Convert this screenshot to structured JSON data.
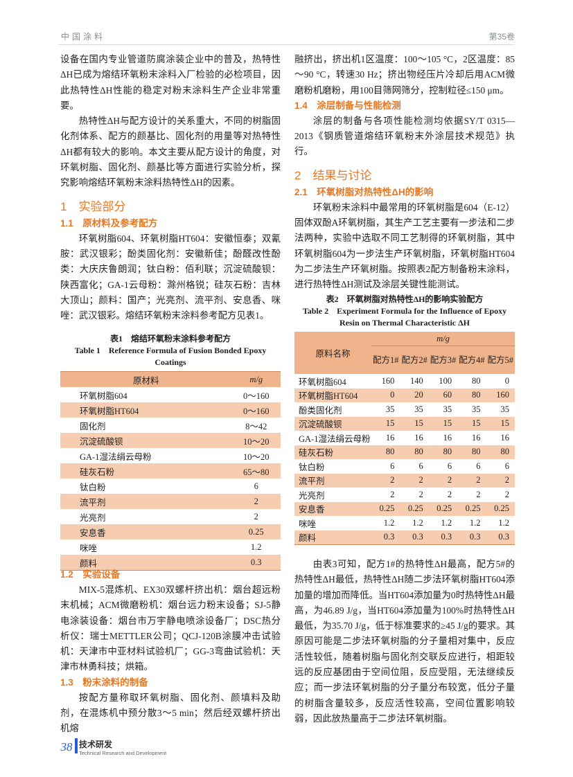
{
  "header": {
    "journal": "中国涂料",
    "volume": "第35卷"
  },
  "left": {
    "p1": "设备在国内专业管道防腐涂装企业中的普及，热特性ΔH已成为熔结环氧粉末涂料入厂检验的必检项目，因此热特性ΔH性能的稳定对粉末涂料生产企业非常重要。",
    "p2": "热特性ΔH与配方设计的关系重大，不同的树脂固化剂体系、配方的颜基比、固化剂的用量等对热特性ΔH都有较大的影响。本文主要从配方设计的角度，对环氧树脂、固化剂、颜基比等方面进行实验分析，探究影响熔结环氧粉末涂料热特性ΔH的因素。",
    "s1": "1　实验部分",
    "s11": "1.1　原材料及参考配方",
    "p3": "环氧树脂604、环氧树脂HT604：安徽恒泰；双氰胺：武汉银彩；酚类固化剂：安徽新佳；酚醛改性酚类：大庆庆鲁朗润；钛白粉：佰利联；沉淀硫酸钡：陕西富化；GA-1云母粉：滁州格锐；硅灰石粉：吉林大顶山；颜料：国产；光亮剂、流平剂、安息香、咪唑：武汉银彩。熔结环氧粉末涂料参考配方见表1。",
    "s12": "1.2　实验设备",
    "p4": "MIX-5混炼机、EX30双螺杆挤出机：烟台超远粉末机械；ACM微磨粉机：烟台远力粉末设备；SJ-5静电涂装设备：烟台市万宇静电喷涂设备厂；DSC热分析仪：瑞士METTLER公司；QCJ-120B涂膜冲击试验机：天津市中亚材料试验机厂；GG-3弯曲试验机：天津市林勇科技；烘箱。",
    "s13": "1.3　粉末涂料的制备",
    "p5": "按配方量称取环氧树脂、固化剂、颜填料及助剂，在混炼机中预分散3～5 min；然后经双螺杆挤出机熔"
  },
  "table1": {
    "caption_cn": "表1　熔结环氧粉末涂料参考配方",
    "caption_en": "Table 1　Reference Formula of Fusion Bonded Epoxy Coatings",
    "headers": [
      "原材料",
      "m/g"
    ],
    "rows": [
      [
        "环氧树脂604",
        "0～160"
      ],
      [
        "环氧树脂HT604",
        "0～160"
      ],
      [
        "固化剂",
        "8～42"
      ],
      [
        "沉淀硫酸钡",
        "10～20"
      ],
      [
        "GA-1湿法绢云母粉",
        "10～20"
      ],
      [
        "硅灰石粉",
        "65～80"
      ],
      [
        "钛白粉",
        "6"
      ],
      [
        "流平剂",
        "2"
      ],
      [
        "光亮剂",
        "2"
      ],
      [
        "安息香",
        "0.25"
      ],
      [
        "咪唑",
        "1.2"
      ],
      [
        "颜料",
        "0.3"
      ]
    ]
  },
  "right": {
    "p1": "融挤出，挤出机1区温度：100～105 °C，2区温度：85～90 °C，转速30 Hz；挤出物经压片冷却后用ACM微磨粉机磨粉，用100目筛网筛分，控制粒径≤150 μm。",
    "s14": "1.4　涂层制备与性能检测",
    "p2": "涂层的制备与各项性能检测均依据SY/T 0315—2013《钢质管道熔结环氧粉末外涂层技术规范》执行。",
    "s2": "2　结果与讨论",
    "s21": "2.1　环氧树脂对热特性ΔH的影响",
    "p3": "环氧粉末涂料中最常用的环氧树脂是604（E-12）固体双酚A环氧树脂，其生产工艺主要有一步法和二步法两种，实验中选取不同工艺制得的环氧树脂，其中环氧树脂604为一步法生产环氧树脂，环氧树脂HT604为二步法生产环氧树脂。按照表2配方制备粉末涂料，进行热特性ΔH测试及涂层关键性能测试。",
    "p4": "由表3可知，配方1#的热特性ΔH最高，配方5#的热特性ΔH最低，热特性ΔH随二步法环氧树脂HT604添加量的增加而降低。当HT604添加量为0时热特性ΔH最高，为46.89 J/g，当HT604添加量为100%时热特性ΔH最低，为35.70 J/g，低于标准要求的≥45 J/g的要求。其原因可能是二步法环氧树脂的分子量相对集中，反应活性较低，随着树脂与固化剂交联反应进行，相距较远的反应基团由于空间位阻，反应受阻，无法继续反应；而一步法环氧树脂的分子量分布较宽，低分子量的树脂含量较多，反应活性较高，空间位置影响较弱，因此放热量高于二步法环氧树脂。"
  },
  "table2": {
    "caption_cn": "表2　环氧树脂对热特性ΔH的影响实验配方",
    "caption_en": "Table 2　Experiment Formula for the Influence of Epoxy Resin on Thermal Characteristic ΔH",
    "header_name": "原料名称",
    "header_unit": "m/g",
    "formulas": [
      "配方1#",
      "配方2#",
      "配方3#",
      "配方4#",
      "配方5#"
    ],
    "rows": [
      [
        "环氧树脂604",
        "160",
        "140",
        "100",
        "80",
        "0"
      ],
      [
        "环氧树脂HT604",
        "0",
        "20",
        "60",
        "80",
        "160"
      ],
      [
        "酚类固化剂",
        "35",
        "35",
        "35",
        "35",
        "35"
      ],
      [
        "沉淀硫酸钡",
        "15",
        "15",
        "15",
        "15",
        "15"
      ],
      [
        "GA-1湿法绢云母粉",
        "16",
        "16",
        "16",
        "16",
        "16"
      ],
      [
        "硅灰石粉",
        "80",
        "80",
        "80",
        "80",
        "80"
      ],
      [
        "钛白粉",
        "6",
        "6",
        "6",
        "6",
        "6"
      ],
      [
        "流平剂",
        "2",
        "2",
        "2",
        "2",
        "2"
      ],
      [
        "光亮剂",
        "2",
        "2",
        "2",
        "2",
        "2"
      ],
      [
        "安息香",
        "0.25",
        "0.25",
        "0.25",
        "0.25",
        "0.25"
      ],
      [
        "咪唑",
        "1.2",
        "1.2",
        "1.2",
        "1.2",
        "1.2"
      ],
      [
        "颜料",
        "0.3",
        "0.3",
        "0.3",
        "0.3",
        "0.3"
      ]
    ]
  },
  "footer": {
    "page": "38",
    "section_cn": "技术研发",
    "section_en": "Technical Research and Development"
  },
  "colors": {
    "heading": "#e87722",
    "table_shade": "#f6cdb0",
    "table_header": "#f0b48c",
    "page_accent": "#2a5bd7"
  }
}
